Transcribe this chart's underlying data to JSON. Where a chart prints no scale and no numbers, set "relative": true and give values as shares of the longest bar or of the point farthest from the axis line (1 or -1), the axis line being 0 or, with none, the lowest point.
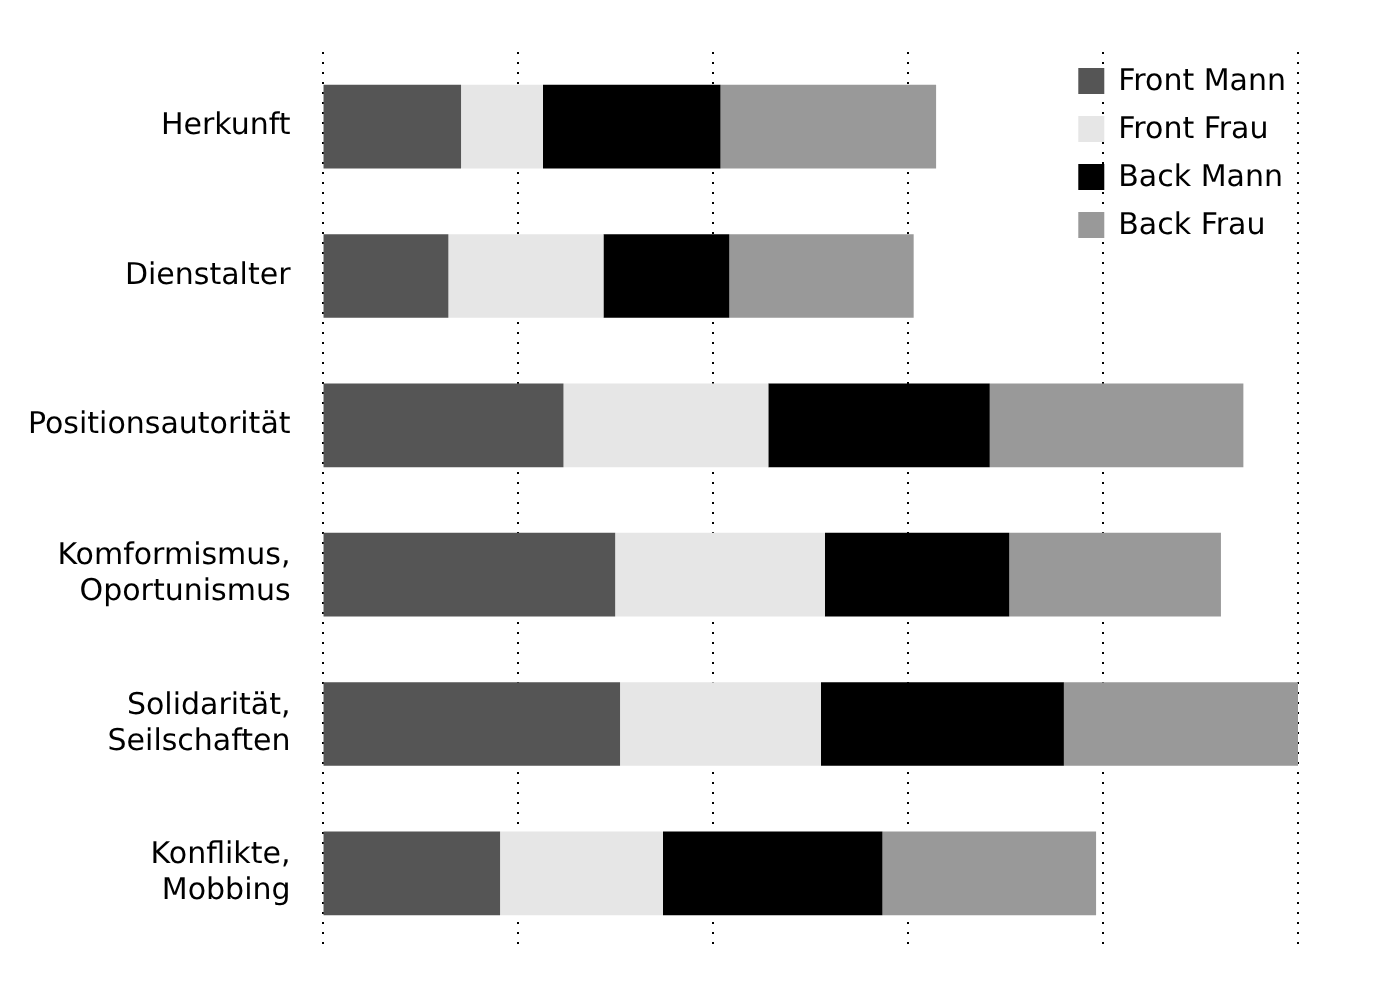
{
  "chart_data": {
    "type": "bar",
    "orientation": "horizontal",
    "stacked": true,
    "relative": true,
    "grid": "x",
    "legend": "top right",
    "categories": [
      "Herkunft",
      "Dienstalter",
      "Positionsautorität",
      "Komformismus,\nOportunismus",
      "Solidarität,\nSeilschaften",
      "Konflikte,\nMobbing"
    ],
    "series": [
      {
        "name": "Front Mann",
        "color": "#555555",
        "values": [
          0.142,
          0.129,
          0.247,
          0.3,
          0.305,
          0.182
        ]
      },
      {
        "name": "Front Frau",
        "color": "#e6e6e6",
        "values": [
          0.084,
          0.159,
          0.21,
          0.215,
          0.206,
          0.167
        ]
      },
      {
        "name": "Back Mann",
        "color": "#000000",
        "values": [
          0.182,
          0.129,
          0.227,
          0.189,
          0.249,
          0.225
        ]
      },
      {
        "name": "Back Frau",
        "color": "#999999",
        "values": [
          0.221,
          0.189,
          0.26,
          0.217,
          0.24,
          0.219
        ]
      }
    ]
  }
}
